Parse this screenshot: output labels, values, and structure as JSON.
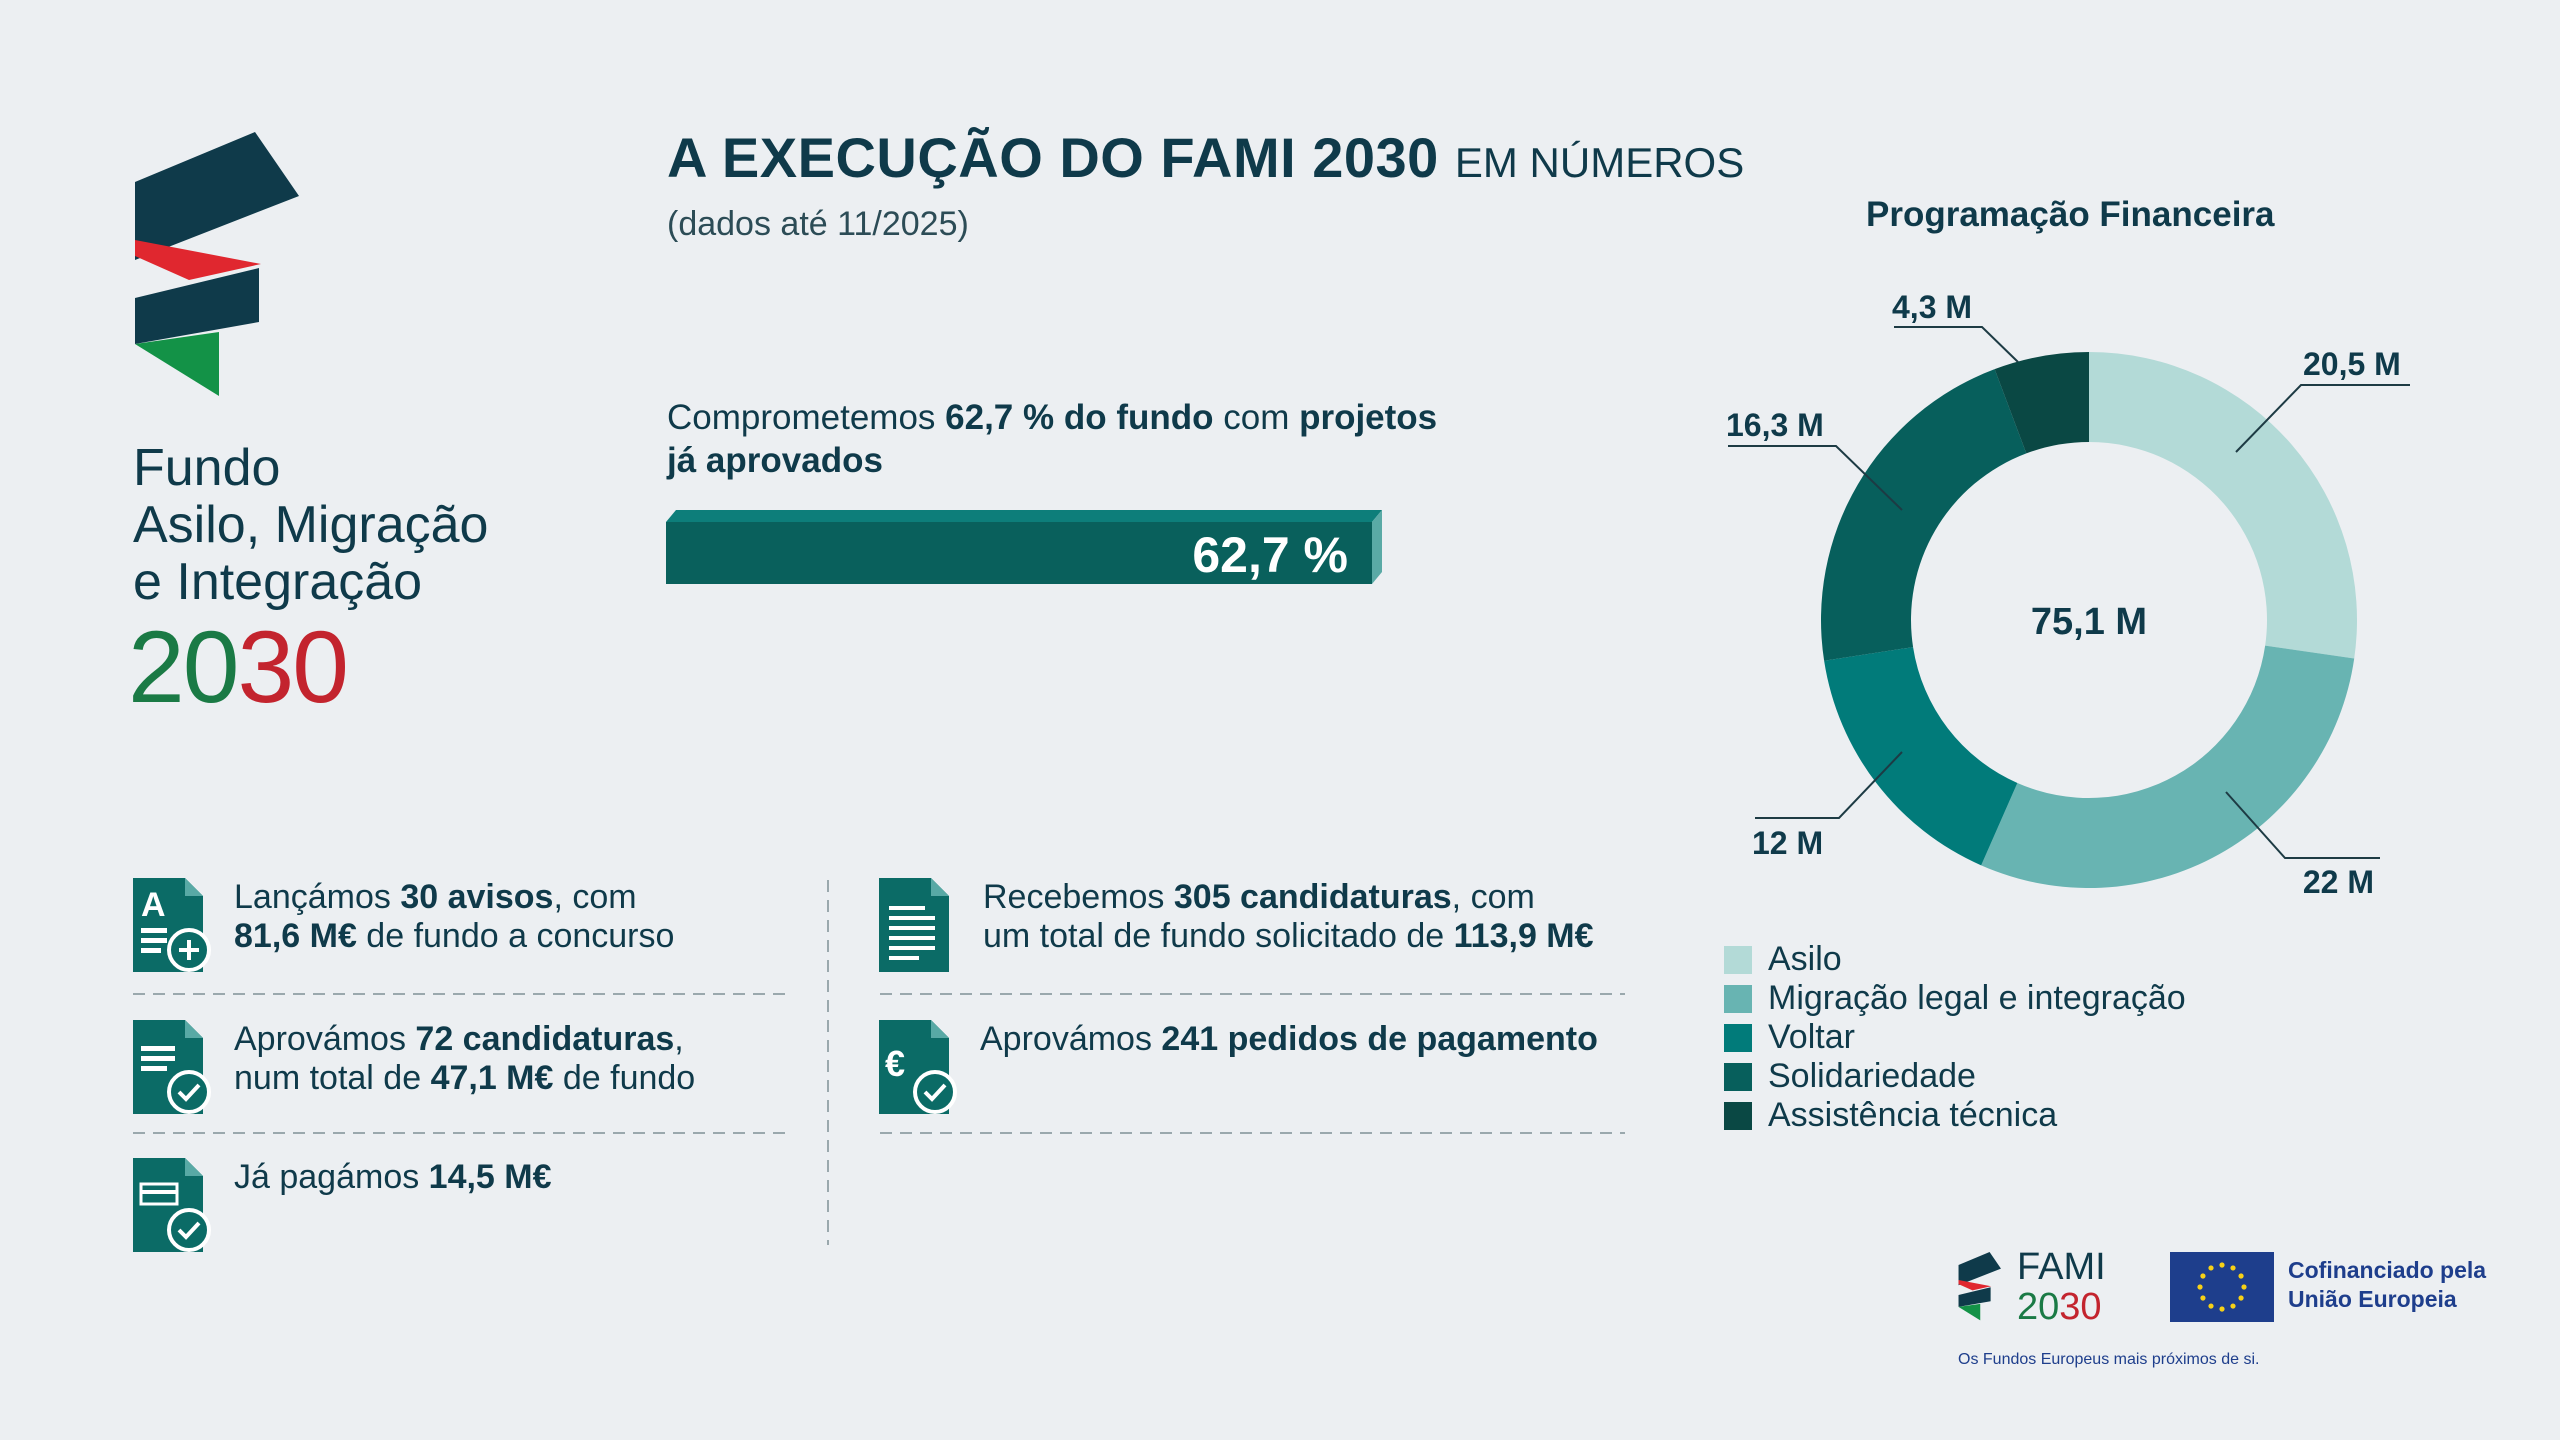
{
  "logo": {
    "line1": "Fundo",
    "line2": "Asilo, Migração",
    "line3": "e Integração",
    "year_a": "20",
    "year_b": "30"
  },
  "header": {
    "title_bold": "A EXECUÇÃO DO FAMI 2030",
    "title_light": "EM NÚMEROS",
    "subtitle": "(dados até 11/2025)"
  },
  "commitment": {
    "t1": "Comprometemos ",
    "b1": "62,7 % do fundo",
    "t2": " com ",
    "b2": "projetos",
    "b3": "já aprovados",
    "bar_label": "62,7 %",
    "bar_fraction": 0.627
  },
  "stats": [
    {
      "icon": "document-letter-a-plus-icon",
      "p1": "Lançámos ",
      "b1": "30 avisos",
      "p2": ", com",
      "b2": "81,6 M€",
      "p3": " de fundo a concurso"
    },
    {
      "icon": "document-check-icon",
      "p1": "Aprovámos ",
      "b1": "72 candidaturas",
      "p2": ",",
      "p3a": "num total de ",
      "b2": "47,1 M€",
      "p3": " de fundo"
    },
    {
      "icon": "invoice-check-icon",
      "p1": "Já pagámos ",
      "b1": "14,5 M€"
    },
    {
      "icon": "document-lines-icon",
      "p1": "Recebemos ",
      "b1": "305 candidaturas",
      "p2": ", com",
      "p3a": "um total de fundo solicitado de ",
      "b2": "113,9 M€"
    },
    {
      "icon": "euro-document-check-icon",
      "p1": "Aprovámos ",
      "b1": "241 pedidos de pagamento"
    }
  ],
  "chart_data": {
    "type": "pie",
    "title": "Programação Financeira",
    "center_label": "75,1 M",
    "categories": [
      "Asilo",
      "Migração legal e integração",
      "Voltar",
      "Solidariedade",
      "Assistência técnica"
    ],
    "values": [
      20.5,
      22,
      12,
      16.3,
      4.3
    ],
    "labels": [
      "20,5 M",
      "22 M",
      "12 M",
      "16,3 M",
      "4,3 M"
    ],
    "colors": [
      "#b3dad7",
      "#68b4b2",
      "#017b7a",
      "#075f5c",
      "#0a4844"
    ],
    "legend": "bottom"
  },
  "footer": {
    "fami": "FAMI",
    "year_a": "20",
    "year_b": "30",
    "eu_line1": "Cofinanciado pela",
    "eu_line2": "União Europeia",
    "tagline": "Os Fundos Europeus mais próximos de si."
  },
  "colors": {
    "primary": "#0f3a4a",
    "teal": "#0e6d69",
    "red": "#c3242e",
    "green": "#1a7a45",
    "eu_blue": "#1e3e8c"
  }
}
